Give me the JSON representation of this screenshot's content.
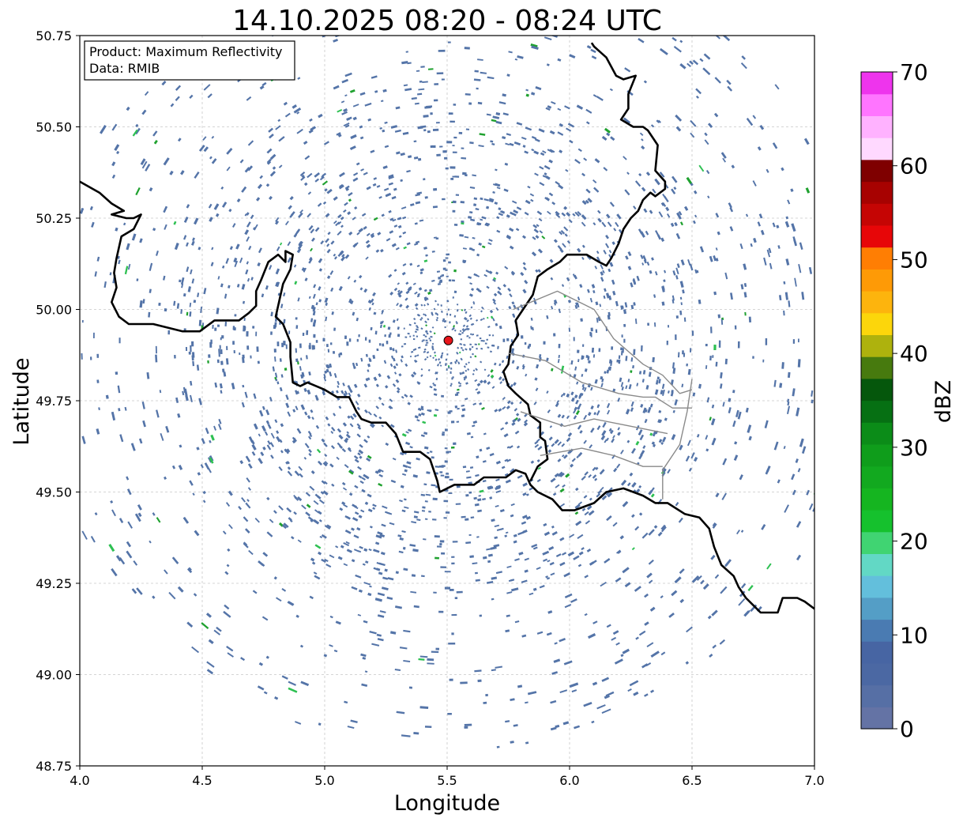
{
  "figure": {
    "title": "14.10.2025 08:20 - 08:24 UTC",
    "info_lines": [
      "Product: Maximum Reflectivity",
      "Data: RMIB"
    ]
  },
  "map": {
    "xlabel": "Longitude",
    "ylabel": "Latitude",
    "xlim": [
      4.0,
      7.0
    ],
    "ylim": [
      48.75,
      50.75
    ],
    "xticks": [
      "4.0",
      "4.5",
      "5.0",
      "5.5",
      "6.0",
      "6.5",
      "7.0"
    ],
    "yticks": [
      "48.75",
      "49.00",
      "49.25",
      "49.50",
      "49.75",
      "50.00",
      "50.25",
      "50.50",
      "50.75"
    ],
    "grid": true,
    "radar_site": {
      "lon": 5.505,
      "lat": 49.915,
      "color": "#e8161b"
    },
    "echo_colors": {
      "weak": "#5474a8",
      "moderate": "#1fa12f",
      "bright": "#2ec052"
    },
    "borders": [
      [
        [
          4.0,
          50.35
        ],
        [
          4.08,
          50.32
        ],
        [
          4.13,
          50.29
        ],
        [
          4.18,
          50.27
        ],
        [
          4.13,
          50.26
        ],
        [
          4.19,
          50.25
        ],
        [
          4.2,
          50.25
        ],
        [
          4.22,
          50.25
        ],
        [
          4.25,
          50.26
        ],
        [
          4.22,
          50.22
        ],
        [
          4.17,
          50.2
        ],
        [
          4.15,
          50.14
        ],
        [
          4.14,
          50.1
        ],
        [
          4.15,
          50.06
        ],
        [
          4.14,
          50.04
        ],
        [
          4.13,
          50.02
        ],
        [
          4.16,
          49.98
        ],
        [
          4.2,
          49.96
        ],
        [
          4.3,
          49.96
        ],
        [
          4.42,
          49.94
        ],
        [
          4.49,
          49.94
        ],
        [
          4.55,
          49.97
        ],
        [
          4.65,
          49.97
        ],
        [
          4.69,
          49.99
        ],
        [
          4.72,
          50.01
        ],
        [
          4.72,
          50.05
        ],
        [
          4.74,
          50.08
        ],
        [
          4.77,
          50.13
        ],
        [
          4.81,
          50.15
        ],
        [
          4.84,
          50.13
        ],
        [
          4.84,
          50.16
        ],
        [
          4.87,
          50.15
        ],
        [
          4.86,
          50.11
        ],
        [
          4.83,
          50.07
        ],
        [
          4.82,
          50.04
        ],
        [
          4.81,
          50.01
        ],
        [
          4.8,
          49.98
        ],
        [
          4.83,
          49.96
        ],
        [
          4.86,
          49.91
        ],
        [
          4.86,
          49.87
        ],
        [
          4.87,
          49.8
        ],
        [
          4.9,
          49.79
        ],
        [
          4.93,
          49.8
        ],
        [
          5.0,
          49.78
        ],
        [
          5.05,
          49.76
        ],
        [
          5.1,
          49.76
        ],
        [
          5.13,
          49.72
        ],
        [
          5.15,
          49.7
        ],
        [
          5.19,
          49.69
        ],
        [
          5.25,
          49.69
        ],
        [
          5.29,
          49.66
        ],
        [
          5.32,
          49.61
        ],
        [
          5.39,
          49.61
        ],
        [
          5.43,
          49.59
        ],
        [
          5.46,
          49.53
        ],
        [
          5.47,
          49.5
        ],
        [
          5.53,
          49.52
        ],
        [
          5.61,
          49.52
        ],
        [
          5.65,
          49.54
        ],
        [
          5.74,
          49.54
        ],
        [
          5.78,
          49.56
        ],
        [
          5.82,
          49.55
        ],
        [
          5.84,
          49.52
        ],
        [
          5.87,
          49.5
        ],
        [
          5.93,
          49.48
        ],
        [
          5.97,
          49.45
        ],
        [
          6.02,
          49.45
        ],
        [
          6.1,
          49.47
        ],
        [
          6.15,
          49.5
        ],
        [
          6.22,
          49.51
        ],
        [
          6.3,
          49.49
        ],
        [
          6.35,
          49.47
        ],
        [
          6.4,
          49.47
        ],
        [
          6.47,
          49.44
        ],
        [
          6.53,
          49.43
        ],
        [
          6.57,
          49.4
        ],
        [
          6.59,
          49.35
        ],
        [
          6.62,
          49.3
        ],
        [
          6.67,
          49.27
        ],
        [
          6.69,
          49.24
        ],
        [
          6.72,
          49.21
        ],
        [
          6.78,
          49.17
        ],
        [
          6.85,
          49.17
        ],
        [
          6.87,
          49.21
        ],
        [
          6.93,
          49.21
        ],
        [
          6.96,
          49.2
        ],
        [
          7.0,
          49.18
        ]
      ],
      [
        [
          6.09,
          50.73
        ],
        [
          6.1,
          50.72
        ],
        [
          6.15,
          50.69
        ],
        [
          6.19,
          50.64
        ],
        [
          6.22,
          50.63
        ],
        [
          6.27,
          50.64
        ],
        [
          6.24,
          50.59
        ],
        [
          6.24,
          50.55
        ],
        [
          6.21,
          50.52
        ],
        [
          6.26,
          50.5
        ],
        [
          6.3,
          50.5
        ],
        [
          6.32,
          50.49
        ],
        [
          6.36,
          50.45
        ],
        [
          6.35,
          50.38
        ],
        [
          6.39,
          50.35
        ],
        [
          6.39,
          50.33
        ],
        [
          6.35,
          50.31
        ],
        [
          6.33,
          50.32
        ],
        [
          6.3,
          50.3
        ],
        [
          6.28,
          50.27
        ],
        [
          6.25,
          50.25
        ],
        [
          6.22,
          50.22
        ],
        [
          6.2,
          50.18
        ],
        [
          6.17,
          50.14
        ],
        [
          6.15,
          50.12
        ],
        [
          6.12,
          50.13
        ],
        [
          6.07,
          50.15
        ],
        [
          5.99,
          50.15
        ],
        [
          5.96,
          50.13
        ],
        [
          5.91,
          50.11
        ],
        [
          5.87,
          50.09
        ],
        [
          5.85,
          50.04
        ],
        [
          5.81,
          50.0
        ],
        [
          5.78,
          49.97
        ],
        [
          5.79,
          49.93
        ],
        [
          5.76,
          49.9
        ],
        [
          5.75,
          49.85
        ],
        [
          5.73,
          49.83
        ],
        [
          5.75,
          49.79
        ],
        [
          5.78,
          49.77
        ],
        [
          5.83,
          49.74
        ],
        [
          5.84,
          49.71
        ],
        [
          5.88,
          49.69
        ],
        [
          5.88,
          49.65
        ],
        [
          5.9,
          49.64
        ],
        [
          5.91,
          49.59
        ],
        [
          5.87,
          49.57
        ],
        [
          5.84,
          49.53
        ]
      ],
      [
        [
          5.77,
          50.0
        ],
        [
          5.95,
          50.05
        ],
        [
          6.1,
          50.0
        ],
        [
          6.18,
          49.92
        ],
        [
          6.3,
          49.85
        ],
        [
          6.38,
          49.82
        ],
        [
          6.45,
          49.77
        ],
        [
          6.5,
          49.78
        ]
      ],
      [
        [
          5.75,
          49.88
        ],
        [
          5.9,
          49.86
        ],
        [
          6.05,
          49.8
        ],
        [
          6.2,
          49.77
        ],
        [
          6.3,
          49.76
        ],
        [
          6.35,
          49.76
        ],
        [
          6.42,
          49.73
        ],
        [
          6.5,
          49.73
        ]
      ],
      [
        [
          5.8,
          49.72
        ],
        [
          5.98,
          49.68
        ],
        [
          6.1,
          49.7
        ],
        [
          6.25,
          49.68
        ],
        [
          6.4,
          49.66
        ]
      ],
      [
        [
          5.88,
          49.6
        ],
        [
          6.05,
          49.62
        ],
        [
          6.18,
          49.6
        ],
        [
          6.3,
          49.57
        ],
        [
          6.38,
          49.57
        ]
      ],
      [
        [
          6.5,
          49.81
        ],
        [
          6.48,
          49.72
        ],
        [
          6.45,
          49.63
        ],
        [
          6.38,
          49.56
        ],
        [
          6.38,
          49.48
        ]
      ]
    ]
  },
  "colorbar": {
    "label": "dBZ",
    "min": 0,
    "max": 70,
    "ticks": [
      "0",
      "10",
      "20",
      "30",
      "40",
      "50",
      "60",
      "70"
    ],
    "colors": [
      "#6473a5",
      "#566fa5",
      "#4b68a3",
      "#4765a3",
      "#4a7bb2",
      "#549ec6",
      "#63bfdc",
      "#62d8c5",
      "#40d472",
      "#15c12d",
      "#15b520",
      "#12a91f",
      "#0f9d1b",
      "#0b8c18",
      "#067013",
      "#05570c",
      "#477a0e",
      "#aeb20d",
      "#fcd60b",
      "#fdb40d",
      "#fe9a06",
      "#ff7e03",
      "#e70608",
      "#c50504",
      "#a70201",
      "#7f0000",
      "#ffd9ff",
      "#ffb2ff",
      "#ff75ff",
      "#ee34ed"
    ]
  }
}
